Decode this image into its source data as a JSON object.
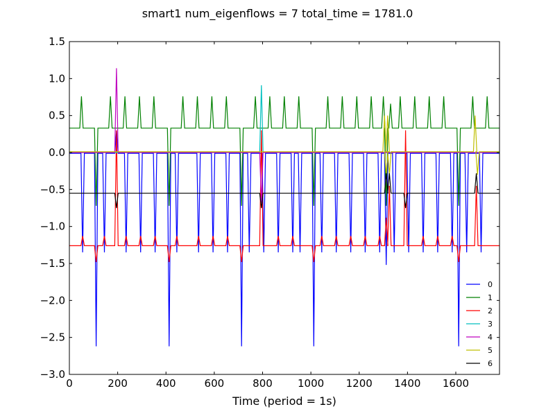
{
  "chart_data": {
    "type": "line",
    "title": "smart1 num_eigenflows = 7 total_time = 1781.0",
    "xlabel": "Time (period = 1s)",
    "ylabel": "",
    "xlim": [
      0,
      1781
    ],
    "ylim": [
      -3.0,
      1.5
    ],
    "xticks": [
      0,
      200,
      400,
      600,
      800,
      1000,
      1200,
      1400,
      1600
    ],
    "xtick_labels": [
      "0",
      "200",
      "400",
      "600",
      "800",
      "1000",
      "1200",
      "1400",
      "1600"
    ],
    "yticks": [
      1.5,
      1.0,
      0.5,
      0.0,
      -0.5,
      -1.0,
      -1.5,
      -2.0,
      -2.5,
      -3.0
    ],
    "ytick_labels": [
      "1.5",
      "1.0",
      "0.5",
      "0.0",
      "−0.5",
      "−1.0",
      "−1.5",
      "−2.0",
      "−2.5",
      "−3.0"
    ],
    "grid": false,
    "legend_position": "lower-right",
    "series": [
      {
        "name": "0",
        "color": "#0000ff",
        "baseline": -0.01,
        "events": [
          {
            "x": 55,
            "y": -1.35
          },
          {
            "x": 111,
            "y": -2.62
          },
          {
            "x": 145,
            "y": -1.35
          },
          {
            "x": 195,
            "y": 0.3
          },
          {
            "x": 235,
            "y": -1.35
          },
          {
            "x": 295,
            "y": -1.35
          },
          {
            "x": 355,
            "y": -1.35
          },
          {
            "x": 413,
            "y": -2.62
          },
          {
            "x": 445,
            "y": -1.35
          },
          {
            "x": 535,
            "y": -1.35
          },
          {
            "x": 595,
            "y": -1.35
          },
          {
            "x": 655,
            "y": -1.35
          },
          {
            "x": 713,
            "y": -2.62
          },
          {
            "x": 745,
            "y": -1.35
          },
          {
            "x": 805,
            "y": -1.35
          },
          {
            "x": 865,
            "y": -1.35
          },
          {
            "x": 925,
            "y": -1.35
          },
          {
            "x": 955,
            "y": -1.35
          },
          {
            "x": 1012,
            "y": -2.62
          },
          {
            "x": 1045,
            "y": -1.35
          },
          {
            "x": 1105,
            "y": -1.35
          },
          {
            "x": 1165,
            "y": -1.35
          },
          {
            "x": 1225,
            "y": -1.35
          },
          {
            "x": 1285,
            "y": -1.35
          },
          {
            "x": 1312,
            "y": -1.52
          },
          {
            "x": 1345,
            "y": -1.35
          },
          {
            "x": 1405,
            "y": -1.35
          },
          {
            "x": 1465,
            "y": -1.35
          },
          {
            "x": 1525,
            "y": -1.35
          },
          {
            "x": 1585,
            "y": -1.35
          },
          {
            "x": 1612,
            "y": -2.62
          },
          {
            "x": 1645,
            "y": -1.35
          },
          {
            "x": 1705,
            "y": -1.35
          }
        ]
      },
      {
        "name": "1",
        "color": "#008000",
        "baseline": 0.33,
        "events": [
          {
            "x": 50,
            "y": 0.76
          },
          {
            "x": 111,
            "y": -0.72
          },
          {
            "x": 170,
            "y": 0.76
          },
          {
            "x": 230,
            "y": 0.76
          },
          {
            "x": 290,
            "y": 0.76
          },
          {
            "x": 350,
            "y": 0.76
          },
          {
            "x": 413,
            "y": -0.72
          },
          {
            "x": 470,
            "y": 0.76
          },
          {
            "x": 530,
            "y": 0.76
          },
          {
            "x": 590,
            "y": 0.76
          },
          {
            "x": 650,
            "y": 0.76
          },
          {
            "x": 713,
            "y": -0.72
          },
          {
            "x": 770,
            "y": 0.76
          },
          {
            "x": 830,
            "y": 0.76
          },
          {
            "x": 890,
            "y": 0.76
          },
          {
            "x": 950,
            "y": 0.76
          },
          {
            "x": 1012,
            "y": -0.72
          },
          {
            "x": 1070,
            "y": 0.76
          },
          {
            "x": 1130,
            "y": 0.76
          },
          {
            "x": 1190,
            "y": 0.76
          },
          {
            "x": 1250,
            "y": 0.76
          },
          {
            "x": 1300,
            "y": 0.76
          },
          {
            "x": 1312,
            "y": -0.72
          },
          {
            "x": 1330,
            "y": 0.66
          },
          {
            "x": 1370,
            "y": 0.76
          },
          {
            "x": 1430,
            "y": 0.76
          },
          {
            "x": 1490,
            "y": 0.76
          },
          {
            "x": 1550,
            "y": 0.76
          },
          {
            "x": 1612,
            "y": -0.72
          },
          {
            "x": 1670,
            "y": 0.76
          },
          {
            "x": 1730,
            "y": 0.76
          }
        ]
      },
      {
        "name": "2",
        "color": "#ff0000",
        "baseline": -1.26,
        "events": [
          {
            "x": 55,
            "y": -1.13
          },
          {
            "x": 111,
            "y": -1.48
          },
          {
            "x": 145,
            "y": -1.13
          },
          {
            "x": 195,
            "y": 0.3
          },
          {
            "x": 235,
            "y": -1.13
          },
          {
            "x": 295,
            "y": -1.13
          },
          {
            "x": 355,
            "y": -1.13
          },
          {
            "x": 413,
            "y": -1.48
          },
          {
            "x": 445,
            "y": -1.13
          },
          {
            "x": 535,
            "y": -1.13
          },
          {
            "x": 595,
            "y": -1.13
          },
          {
            "x": 655,
            "y": -1.13
          },
          {
            "x": 713,
            "y": -1.48
          },
          {
            "x": 795,
            "y": 0.3
          },
          {
            "x": 865,
            "y": -1.13
          },
          {
            "x": 925,
            "y": -1.13
          },
          {
            "x": 1012,
            "y": -1.48
          },
          {
            "x": 1045,
            "y": -1.13
          },
          {
            "x": 1105,
            "y": -1.13
          },
          {
            "x": 1165,
            "y": -1.13
          },
          {
            "x": 1225,
            "y": -1.13
          },
          {
            "x": 1285,
            "y": -1.13
          },
          {
            "x": 1312,
            "y": -0.88
          },
          {
            "x": 1325,
            "y": -0.45
          },
          {
            "x": 1392,
            "y": 0.3
          },
          {
            "x": 1465,
            "y": -1.13
          },
          {
            "x": 1525,
            "y": -1.13
          },
          {
            "x": 1585,
            "y": -1.13
          },
          {
            "x": 1612,
            "y": -1.48
          },
          {
            "x": 1685,
            "y": -0.45
          }
        ]
      },
      {
        "name": "3",
        "color": "#00bfbf",
        "baseline": 0.0,
        "events": [
          {
            "x": 795,
            "y": 0.91
          }
        ]
      },
      {
        "name": "4",
        "color": "#bf00bf",
        "baseline": 0.0,
        "events": [
          {
            "x": 195,
            "y": 1.14
          },
          {
            "x": 795,
            "y": -0.68
          }
        ]
      },
      {
        "name": "5",
        "color": "#bfbf00",
        "baseline": 0.01,
        "events": [
          {
            "x": 1305,
            "y": 0.5
          },
          {
            "x": 1312,
            "y": -0.3
          },
          {
            "x": 1318,
            "y": 0.5
          },
          {
            "x": 1325,
            "y": -0.3
          },
          {
            "x": 1680,
            "y": 0.5
          },
          {
            "x": 1690,
            "y": -0.3
          }
        ]
      },
      {
        "name": "6",
        "color": "#000000",
        "baseline": -0.55,
        "events": [
          {
            "x": 195,
            "y": -0.75
          },
          {
            "x": 795,
            "y": -0.75
          },
          {
            "x": 1312,
            "y": -0.28
          },
          {
            "x": 1325,
            "y": -0.28
          },
          {
            "x": 1392,
            "y": -0.75
          },
          {
            "x": 1685,
            "y": -0.28
          }
        ]
      }
    ]
  }
}
